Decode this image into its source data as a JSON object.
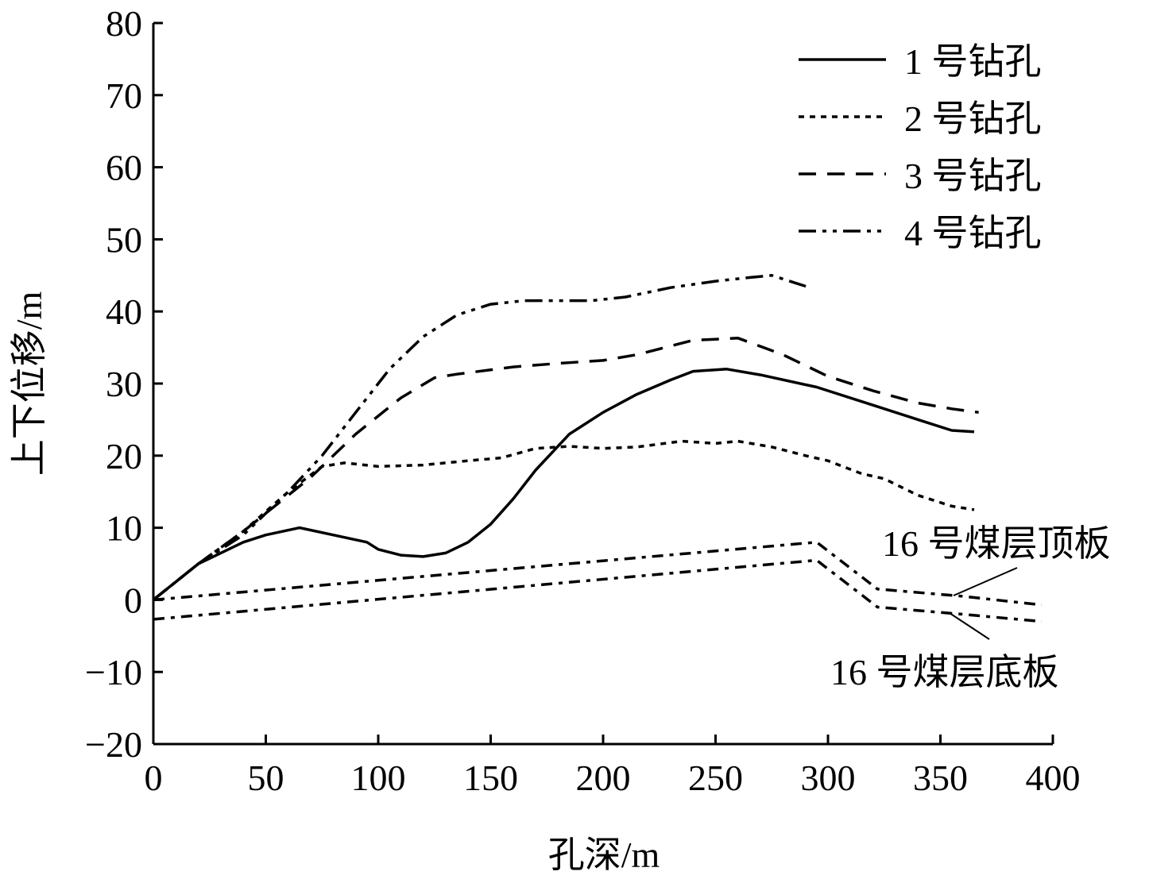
{
  "chart_data": {
    "type": "line",
    "xlabel": "孔深/m",
    "ylabel": "上下位移/m",
    "xlim": [
      0,
      400
    ],
    "ylim": [
      -20,
      80
    ],
    "xticks": [
      0,
      50,
      100,
      150,
      200,
      250,
      300,
      350,
      400
    ],
    "yticks": [
      -20,
      -10,
      0,
      10,
      20,
      30,
      40,
      50,
      60,
      70,
      80
    ],
    "ytick_labels": [
      "−20",
      "−10",
      "0",
      "10",
      "20",
      "30",
      "40",
      "50",
      "60",
      "70",
      "80"
    ],
    "grid": false,
    "legend_position": "top-right",
    "series": [
      {
        "name": "1 号钻孔",
        "style": "solid",
        "points": [
          [
            0,
            0
          ],
          [
            20,
            5
          ],
          [
            40,
            8
          ],
          [
            50,
            9
          ],
          [
            65,
            10
          ],
          [
            80,
            9
          ],
          [
            95,
            8
          ],
          [
            100,
            7
          ],
          [
            110,
            6.2
          ],
          [
            120,
            6
          ],
          [
            130,
            6.5
          ],
          [
            140,
            8
          ],
          [
            150,
            10.5
          ],
          [
            160,
            14
          ],
          [
            170,
            18
          ],
          [
            185,
            23
          ],
          [
            200,
            26
          ],
          [
            215,
            28.5
          ],
          [
            230,
            30.5
          ],
          [
            240,
            31.7
          ],
          [
            255,
            32
          ],
          [
            270,
            31.2
          ],
          [
            295,
            29.5
          ],
          [
            320,
            27
          ],
          [
            340,
            25
          ],
          [
            355,
            23.5
          ],
          [
            365,
            23.3
          ]
        ]
      },
      {
        "name": "2 号钻孔",
        "style": "dotted",
        "points": [
          [
            0,
            0
          ],
          [
            20,
            5
          ],
          [
            40,
            9.5
          ],
          [
            60,
            15
          ],
          [
            75,
            18.5
          ],
          [
            85,
            19
          ],
          [
            100,
            18.5
          ],
          [
            120,
            18.7
          ],
          [
            140,
            19.3
          ],
          [
            155,
            19.7
          ],
          [
            170,
            21
          ],
          [
            185,
            21.3
          ],
          [
            200,
            21
          ],
          [
            215,
            21.2
          ],
          [
            235,
            22
          ],
          [
            250,
            21.7
          ],
          [
            260,
            22
          ],
          [
            275,
            21.2
          ],
          [
            290,
            20
          ],
          [
            300,
            19.3
          ],
          [
            315,
            17.5
          ],
          [
            325,
            16.8
          ],
          [
            340,
            14.5
          ],
          [
            355,
            13
          ],
          [
            365,
            12.5
          ]
        ]
      },
      {
        "name": "3 号钻孔",
        "style": "dashed",
        "points": [
          [
            0,
            0
          ],
          [
            20,
            5
          ],
          [
            40,
            9.5
          ],
          [
            60,
            14.5
          ],
          [
            70,
            17
          ],
          [
            90,
            23
          ],
          [
            110,
            28
          ],
          [
            125,
            30.8
          ],
          [
            135,
            31.3
          ],
          [
            160,
            32.3
          ],
          [
            180,
            32.8
          ],
          [
            200,
            33.2
          ],
          [
            215,
            34
          ],
          [
            240,
            36
          ],
          [
            260,
            36.3
          ],
          [
            280,
            34
          ],
          [
            300,
            31
          ],
          [
            320,
            29
          ],
          [
            340,
            27.3
          ],
          [
            355,
            26.5
          ],
          [
            367,
            26
          ]
        ]
      },
      {
        "name": "4 号钻孔",
        "style": "dash-dot-dot",
        "points": [
          [
            0,
            0
          ],
          [
            20,
            5
          ],
          [
            40,
            9
          ],
          [
            60,
            15
          ],
          [
            75,
            20
          ],
          [
            90,
            26
          ],
          [
            105,
            32
          ],
          [
            120,
            36.5
          ],
          [
            135,
            39.5
          ],
          [
            150,
            41
          ],
          [
            165,
            41.5
          ],
          [
            180,
            41.5
          ],
          [
            195,
            41.5
          ],
          [
            210,
            42
          ],
          [
            230,
            43.3
          ],
          [
            250,
            44.2
          ],
          [
            265,
            44.7
          ],
          [
            275,
            45
          ],
          [
            285,
            44
          ],
          [
            292,
            43.3
          ]
        ]
      }
    ],
    "annotated_lines": [
      {
        "label": "16 号煤层顶板",
        "style": "dash-dot",
        "points": [
          [
            0,
            0
          ],
          [
            295,
            8
          ],
          [
            322,
            1.5
          ],
          [
            360,
            0.5
          ],
          [
            395,
            -0.7
          ]
        ]
      },
      {
        "label": "16 号煤层底板",
        "style": "dash-dot",
        "points": [
          [
            0,
            -2.7
          ],
          [
            295,
            5.5
          ],
          [
            322,
            -1
          ],
          [
            360,
            -2
          ],
          [
            395,
            -3
          ]
        ]
      }
    ]
  }
}
